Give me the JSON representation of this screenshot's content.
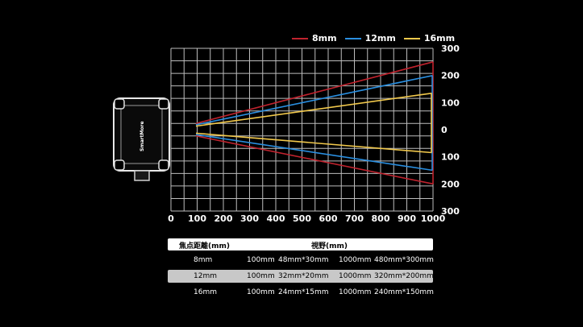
{
  "chart_data": {
    "type": "line",
    "xlabel": "",
    "ylabel": "",
    "x_ticks": [
      "0",
      "100",
      "200",
      "300",
      "400",
      "500",
      "600",
      "700",
      "800",
      "900",
      "1000"
    ],
    "y_ticks": [
      "300",
      "200",
      "100",
      "0",
      "100",
      "200",
      "300"
    ],
    "xlim": [
      0,
      1000
    ],
    "ylim": [
      -300,
      300
    ],
    "grid": true,
    "legend_position": "top-right",
    "series": [
      {
        "name": "8mm",
        "color": "#c0232e",
        "upper": [
          [
            100,
            20
          ],
          [
            1000,
            250
          ]
        ],
        "lower": [
          [
            100,
            -20
          ],
          [
            1000,
            -200
          ]
        ]
      },
      {
        "name": "12mm",
        "color": "#2a8fe0",
        "upper": [
          [
            100,
            15
          ],
          [
            1000,
            200
          ]
        ],
        "lower": [
          [
            100,
            -15
          ],
          [
            1000,
            -150
          ]
        ]
      },
      {
        "name": "16mm",
        "color": "#f2c94c",
        "upper": [
          [
            100,
            10
          ],
          [
            1000,
            135
          ]
        ],
        "lower": [
          [
            100,
            -10
          ],
          [
            1000,
            -85
          ]
        ]
      }
    ]
  },
  "device": {
    "brand_label": "SmartMore"
  },
  "table": {
    "header": {
      "focal": "焦点距離(mm)",
      "fov": "視野(mm)"
    },
    "rows": [
      {
        "focal": "8mm",
        "d1": "100mm",
        "v1": "48mm*30mm",
        "d2": "1000mm",
        "v2": "480mm*300mm",
        "alt": false
      },
      {
        "focal": "12mm",
        "d1": "100mm",
        "v1": "32mm*20mm",
        "d2": "1000mm",
        "v2": "320mm*200mm",
        "alt": true
      },
      {
        "focal": "16mm",
        "d1": "100mm",
        "v1": "24mm*15mm",
        "d2": "1000mm",
        "v2": "240mm*150mm",
        "alt": false
      }
    ]
  }
}
